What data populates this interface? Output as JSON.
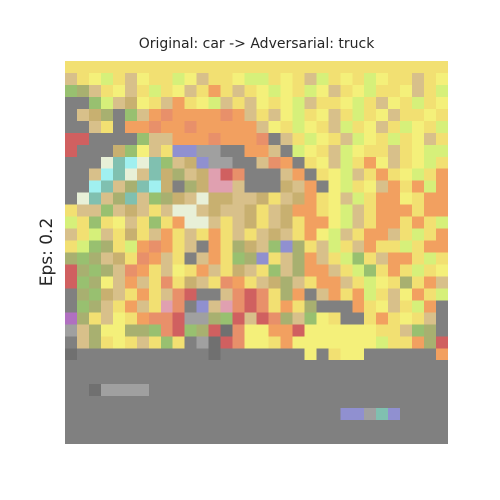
{
  "figure": {
    "title": "Original: car -> Adversarial: truck",
    "ylabel": "Eps: 0.2"
  },
  "image": {
    "description_subject": "pixelated adversarial image of a car",
    "background_color": "#808080",
    "palette": {
      "yellow": "#f2e072",
      "light_yellow": "#f4f07a",
      "lime": "#d6f07a",
      "tan": "#d8c08a",
      "orange": "#f2a060",
      "salmon": "#e8906a",
      "khaki": "#c8b070",
      "olive": "#a8b070",
      "green": "#98c070",
      "teal": "#80c0b0",
      "cyan": "#a0f0f0",
      "pale": "#e8f0d8",
      "lavender": "#9090d0",
      "pink": "#e0a0b0",
      "red": "#d06060",
      "magenta": "#b070c0",
      "grey": "#808080",
      "dgrey": "#707070",
      "lgrey": "#a0a0a0"
    }
  }
}
